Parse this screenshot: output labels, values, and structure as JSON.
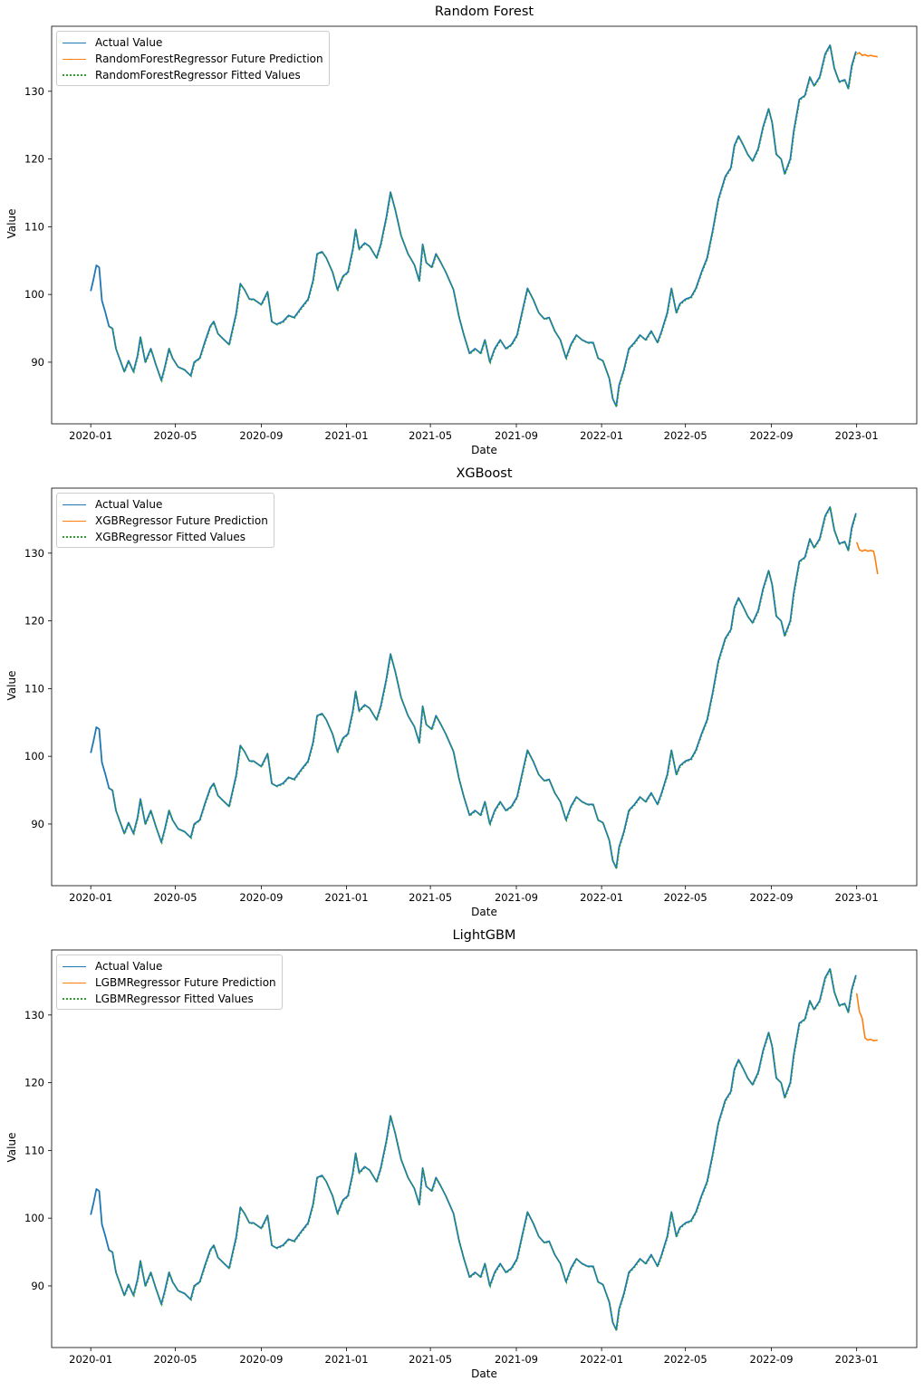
{
  "chart_data": [
    {
      "type": "line",
      "title": "Random Forest",
      "xlabel": "Date",
      "ylabel": "Value",
      "xlim": [
        "2019-11-06",
        "2023-03-28"
      ],
      "ylim": [
        80.9,
        139.6
      ],
      "grid": false,
      "legend_placement": "upper-left",
      "xticks": [
        "2020-01",
        "2020-05",
        "2020-09",
        "2021-01",
        "2021-05",
        "2021-09",
        "2022-01",
        "2022-05",
        "2022-09",
        "2023-01"
      ],
      "yticks": [
        90,
        100,
        110,
        120,
        130
      ],
      "colors": {
        "actual": "#1f77b4",
        "future": "#ff7f0e",
        "fitted": "#2ca02c"
      },
      "legend": [
        "Actual Value",
        "RandomForestRegressor Future Prediction",
        "RandomForestRegressor Fitted Values"
      ],
      "future": {
        "x": [
          "2023-01-01",
          "2023-01-05",
          "2023-01-09",
          "2023-01-13",
          "2023-01-17",
          "2023-01-21",
          "2023-01-25",
          "2023-01-31"
        ],
        "values": [
          135.5,
          135.7,
          135.3,
          135.4,
          135.2,
          135.3,
          135.2,
          135.1
        ]
      }
    },
    {
      "type": "line",
      "title": "XGBoost",
      "xlabel": "Date",
      "ylabel": "Value",
      "xlim": [
        "2019-11-06",
        "2023-03-28"
      ],
      "ylim": [
        80.9,
        139.6
      ],
      "grid": false,
      "legend_placement": "upper-left",
      "xticks": [
        "2020-01",
        "2020-05",
        "2020-09",
        "2021-01",
        "2021-05",
        "2021-09",
        "2022-01",
        "2022-05",
        "2022-09",
        "2023-01"
      ],
      "yticks": [
        90,
        100,
        110,
        120,
        130
      ],
      "colors": {
        "actual": "#1f77b4",
        "future": "#ff7f0e",
        "fitted": "#2ca02c"
      },
      "legend": [
        "Actual Value",
        "XGBRegressor Future Prediction",
        "XGBRegressor Fitted Values"
      ],
      "future": {
        "x": [
          "2023-01-01",
          "2023-01-05",
          "2023-01-09",
          "2023-01-13",
          "2023-01-17",
          "2023-01-21",
          "2023-01-25",
          "2023-01-27",
          "2023-01-31"
        ],
        "values": [
          131.6,
          130.5,
          130.3,
          130.5,
          130.3,
          130.4,
          130.3,
          129.5,
          126.9
        ]
      }
    },
    {
      "type": "line",
      "title": "LightGBM",
      "xlabel": "Date",
      "ylabel": "Value",
      "xlim": [
        "2019-11-06",
        "2023-03-28"
      ],
      "ylim": [
        80.9,
        139.6
      ],
      "grid": false,
      "legend_placement": "upper-left",
      "xticks": [
        "2020-01",
        "2020-05",
        "2020-09",
        "2021-01",
        "2021-05",
        "2021-09",
        "2022-01",
        "2022-05",
        "2022-09",
        "2023-01"
      ],
      "yticks": [
        90,
        100,
        110,
        120,
        130
      ],
      "colors": {
        "actual": "#1f77b4",
        "future": "#ff7f0e",
        "fitted": "#2ca02c"
      },
      "legend": [
        "Actual Value",
        "LGBMRegressor Future Prediction",
        "LGBMRegressor Fitted Values"
      ],
      "future": {
        "x": [
          "2023-01-01",
          "2023-01-05",
          "2023-01-09",
          "2023-01-13",
          "2023-01-17",
          "2023-01-21",
          "2023-01-25",
          "2023-01-31"
        ],
        "values": [
          133.2,
          130.5,
          129.5,
          126.6,
          126.3,
          126.4,
          126.2,
          126.3
        ]
      }
    }
  ],
  "actual_series": {
    "x": [
      "2020-01-01",
      "2020-01-05",
      "2020-01-09",
      "2020-01-13",
      "2020-01-17",
      "2020-01-22",
      "2020-01-27",
      "2020-02-01",
      "2020-02-06",
      "2020-02-13",
      "2020-02-18",
      "2020-02-24",
      "2020-03-02",
      "2020-03-08",
      "2020-03-12",
      "2020-03-19",
      "2020-03-27",
      "2020-04-03",
      "2020-04-11",
      "2020-04-16",
      "2020-04-22",
      "2020-04-27",
      "2020-05-05",
      "2020-05-14",
      "2020-05-23",
      "2020-05-28",
      "2020-06-05",
      "2020-06-12",
      "2020-06-20",
      "2020-06-25",
      "2020-07-01",
      "2020-07-10",
      "2020-07-17",
      "2020-07-27",
      "2020-08-02",
      "2020-08-08",
      "2020-08-15",
      "2020-08-21",
      "2020-09-01",
      "2020-09-10",
      "2020-09-16",
      "2020-09-23",
      "2020-10-02",
      "2020-10-10",
      "2020-10-18",
      "2020-10-28",
      "2020-11-07",
      "2020-11-14",
      "2020-11-20",
      "2020-11-27",
      "2020-12-03",
      "2020-12-12",
      "2020-12-19",
      "2020-12-27",
      "2021-01-03",
      "2021-01-10",
      "2021-01-14",
      "2021-01-19",
      "2021-01-27",
      "2021-02-03",
      "2021-02-13",
      "2021-02-19",
      "2021-02-27",
      "2021-03-05",
      "2021-03-12",
      "2021-03-20",
      "2021-03-30",
      "2021-04-08",
      "2021-04-15",
      "2021-04-20",
      "2021-04-25",
      "2021-05-03",
      "2021-05-09",
      "2021-05-16",
      "2021-05-23",
      "2021-06-03",
      "2021-06-11",
      "2021-06-18",
      "2021-06-26",
      "2021-07-04",
      "2021-07-12",
      "2021-07-18",
      "2021-07-25",
      "2021-08-01",
      "2021-08-09",
      "2021-08-17",
      "2021-08-25",
      "2021-09-02",
      "2021-09-09",
      "2021-09-17",
      "2021-09-25",
      "2021-10-03",
      "2021-10-11",
      "2021-10-18",
      "2021-10-26",
      "2021-11-03",
      "2021-11-11",
      "2021-11-18",
      "2021-11-26",
      "2021-12-04",
      "2021-12-12",
      "2021-12-20",
      "2021-12-27",
      "2022-01-03",
      "2022-01-12",
      "2022-01-17",
      "2022-01-22",
      "2022-01-26",
      "2022-02-02",
      "2022-02-09",
      "2022-02-17",
      "2022-02-25",
      "2022-03-05",
      "2022-03-13",
      "2022-03-22",
      "2022-03-28",
      "2022-04-05",
      "2022-04-11",
      "2022-04-18",
      "2022-04-23",
      "2022-05-01",
      "2022-05-09",
      "2022-05-16",
      "2022-05-24",
      "2022-06-01",
      "2022-06-09",
      "2022-06-17",
      "2022-06-27",
      "2022-07-05",
      "2022-07-10",
      "2022-07-16",
      "2022-07-23",
      "2022-07-29",
      "2022-08-05",
      "2022-08-13",
      "2022-08-20",
      "2022-08-28",
      "2022-09-02",
      "2022-09-08",
      "2022-09-15",
      "2022-09-20",
      "2022-09-28",
      "2022-10-03",
      "2022-10-11",
      "2022-10-19",
      "2022-10-26",
      "2022-11-01",
      "2022-11-09",
      "2022-11-17",
      "2022-11-24",
      "2022-11-30",
      "2022-12-07",
      "2022-12-15",
      "2022-12-20",
      "2022-12-25",
      "2022-12-31"
    ],
    "values": [
      100.5,
      102.3,
      104.3,
      104.0,
      99.1,
      97.3,
      95.3,
      95.0,
      92.0,
      90.0,
      88.6,
      90.2,
      88.6,
      91.0,
      93.7,
      90.0,
      92.0,
      89.7,
      87.3,
      89.3,
      92.0,
      90.6,
      89.3,
      88.9,
      88.0,
      90.0,
      90.6,
      92.9,
      95.3,
      96.0,
      94.2,
      93.3,
      92.6,
      97.2,
      101.6,
      100.7,
      99.3,
      99.3,
      98.5,
      100.4,
      96.0,
      95.6,
      96.0,
      96.9,
      96.6,
      98.0,
      99.3,
      102.0,
      106.0,
      106.3,
      105.4,
      103.3,
      100.7,
      102.7,
      103.3,
      106.7,
      109.6,
      106.7,
      107.6,
      107.1,
      105.4,
      107.4,
      111.4,
      115.1,
      112.4,
      108.7,
      106.0,
      104.4,
      102.0,
      107.4,
      104.7,
      104.0,
      106.0,
      104.7,
      103.3,
      100.7,
      96.7,
      94.0,
      91.3,
      92.0,
      91.3,
      93.3,
      90.0,
      92.0,
      93.3,
      92.0,
      92.6,
      94.0,
      97.3,
      100.9,
      99.3,
      97.3,
      96.4,
      96.6,
      94.6,
      93.3,
      90.6,
      92.6,
      94.0,
      93.3,
      92.9,
      92.9,
      90.6,
      90.2,
      87.6,
      84.6,
      83.5,
      86.6,
      88.9,
      92.0,
      92.9,
      94.0,
      93.3,
      94.6,
      92.9,
      94.6,
      97.3,
      100.9,
      97.3,
      98.6,
      99.3,
      99.6,
      100.9,
      103.3,
      105.4,
      109.4,
      114.0,
      117.4,
      118.7,
      122.0,
      123.4,
      122.0,
      120.7,
      119.7,
      121.5,
      124.7,
      127.4,
      125.4,
      120.7,
      120.0,
      117.8,
      120.0,
      124.1,
      128.8,
      129.4,
      132.1,
      130.8,
      132.1,
      135.5,
      136.8,
      133.4,
      131.4,
      131.7,
      130.4,
      133.8,
      135.9
    ]
  },
  "fitted_series": {
    "x_from": "2020-01-27",
    "note_values_track_actual": true
  }
}
